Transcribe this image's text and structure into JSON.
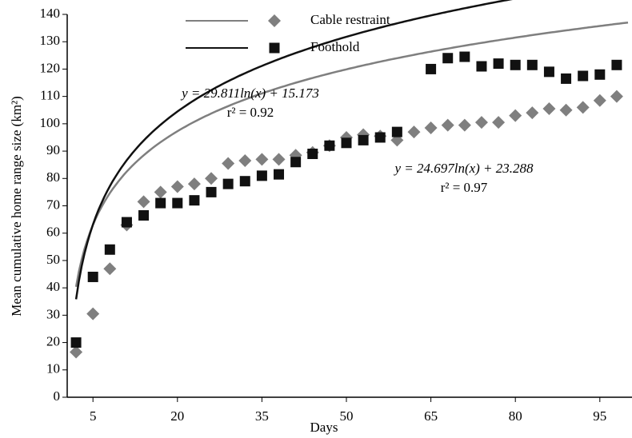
{
  "chart_data": {
    "type": "scatter",
    "x_label": "Days",
    "y_label": "Mean cumulative  home  range size  (km²)",
    "xlim": [
      0,
      100
    ],
    "xticks": [
      5,
      20,
      35,
      50,
      65,
      80,
      95
    ],
    "ylim": [
      0,
      140
    ],
    "yticks": [
      0,
      10,
      20,
      30,
      40,
      50,
      60,
      70,
      80,
      90,
      100,
      110,
      120,
      130,
      140
    ],
    "x": [
      2,
      5,
      8,
      11,
      14,
      17,
      20,
      23,
      26,
      29,
      32,
      35,
      38,
      41,
      44,
      47,
      50,
      53,
      56,
      59,
      62,
      65,
      68,
      71,
      74,
      77,
      80,
      83,
      86,
      89,
      92,
      95,
      98
    ],
    "series": [
      {
        "name": "Cable restraint",
        "color": "#7f7f7f",
        "marker": "diamond",
        "values": [
          16.5,
          30.5,
          47,
          63,
          71.5,
          75,
          77,
          78,
          80,
          85.5,
          86.5,
          87,
          87,
          88.5,
          89.5,
          92,
          95,
          96,
          95.5,
          94,
          97,
          98.5,
          99.5,
          99.5,
          100.5,
          100.5,
          103,
          104,
          105.5,
          105,
          106,
          108.5,
          110
        ],
        "trendline": {
          "coefficient": 24.697,
          "intercept": 23.288
        },
        "equation": "y = 24.697ln(x) + 23.288",
        "r2_label": "r² = 0.97"
      },
      {
        "name": "Foothold",
        "color": "#111111",
        "marker": "square",
        "values": [
          20,
          44,
          54,
          64,
          66.5,
          71,
          71,
          72,
          75,
          78,
          79,
          81,
          81.5,
          86,
          89,
          92,
          93,
          94,
          95,
          97,
          null,
          120,
          124,
          124.5,
          121,
          122,
          121.5,
          121.5,
          119,
          116.5,
          117.5,
          118,
          121.5
        ],
        "trendline": {
          "coefficient": 29.811,
          "intercept": 15.173
        },
        "equation": "y = 29.811ln(x)  + 15.173",
        "r2_label": "r² = 0.92"
      }
    ]
  }
}
